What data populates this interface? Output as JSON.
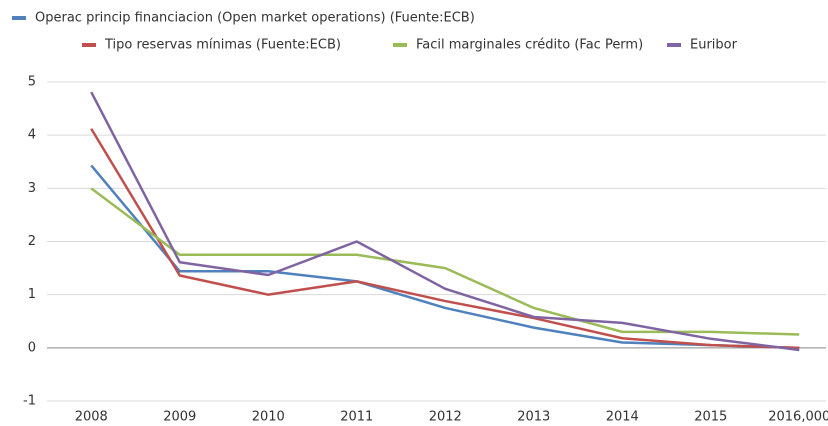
{
  "chart_data": {
    "type": "line",
    "categories": [
      "2008",
      "2009",
      "2010",
      "2011",
      "2012",
      "2013",
      "2014",
      "2015",
      "2016,000"
    ],
    "series": [
      {
        "name": "Operac princip financiacion (Open market operations) (Fuente:ECB)",
        "color": "#4f81bd",
        "values": [
          3.43,
          1.44,
          1.44,
          1.25,
          0.75,
          0.38,
          0.1,
          0.05,
          0.0
        ]
      },
      {
        "name": "Tipo reservas mínimas (Fuente:ECB)",
        "color": "#c0504d",
        "values": [
          4.12,
          1.36,
          1.0,
          1.25,
          0.88,
          0.56,
          0.18,
          0.05,
          0.0
        ]
      },
      {
        "name": "Facil marginales crédito (Fac Perm)",
        "color": "#9bbb59",
        "values": [
          3.0,
          1.75,
          1.75,
          1.75,
          1.5,
          0.75,
          0.3,
          0.3,
          0.25
        ]
      },
      {
        "name": "Euribor",
        "color": "#8064a2",
        "values": [
          4.81,
          1.61,
          1.37,
          2.0,
          1.11,
          0.58,
          0.47,
          0.17,
          -0.04
        ]
      }
    ],
    "ylim": [
      -1,
      5
    ],
    "yticks": [
      -1,
      0,
      1,
      2,
      3,
      4,
      5
    ],
    "grid": true
  }
}
